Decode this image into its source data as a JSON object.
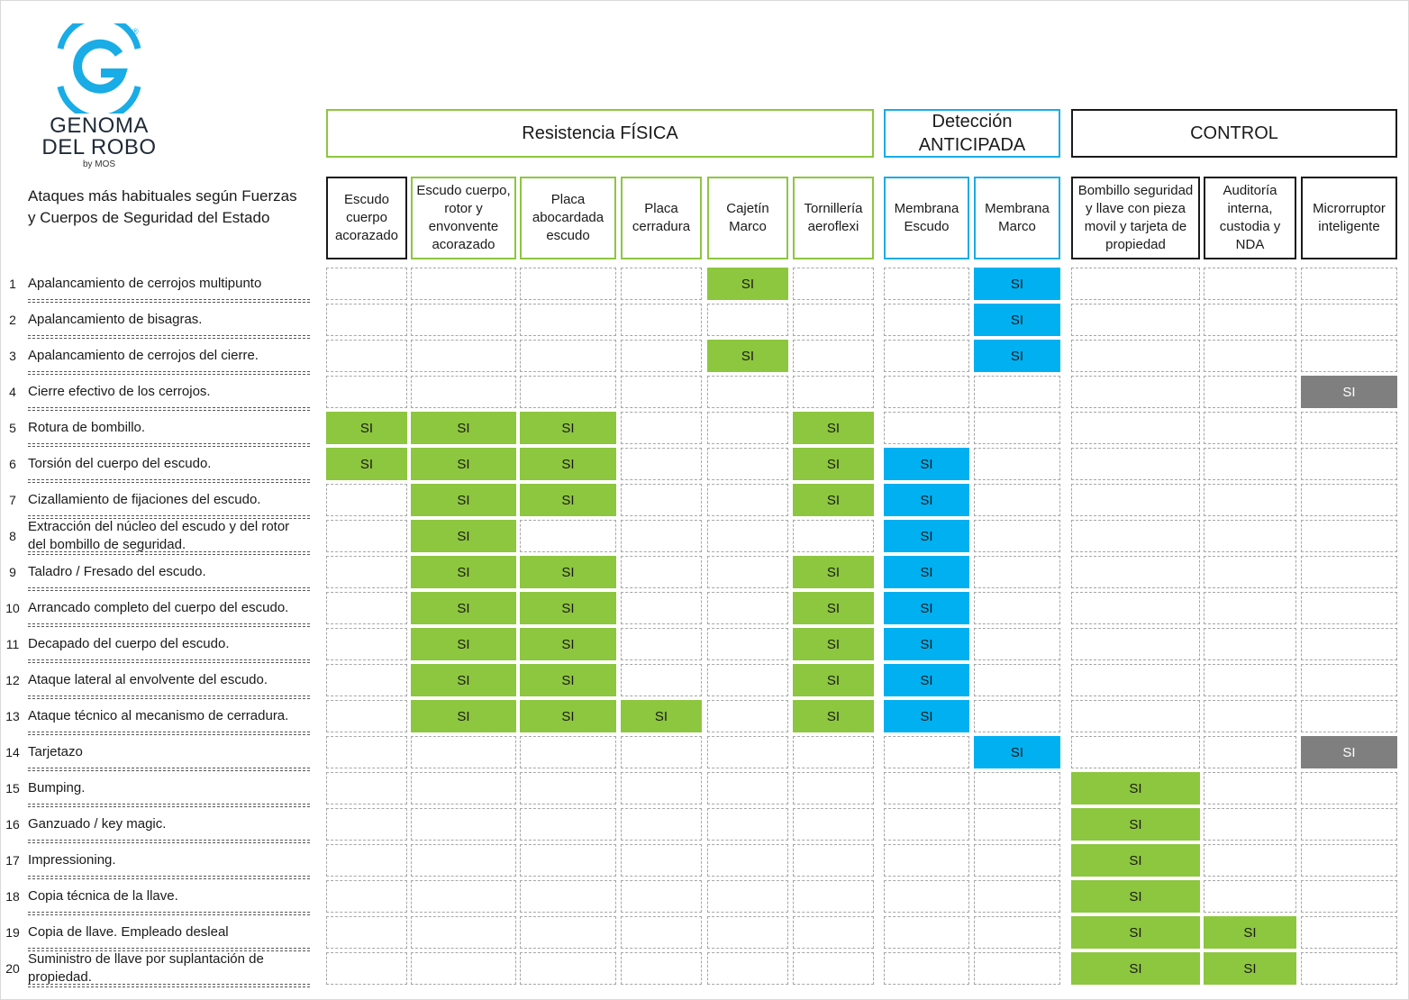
{
  "logo": {
    "line1": "GENOMA",
    "line2": "DEL ROBO",
    "byline": "by MOS",
    "registered": "®",
    "letter": "G",
    "color": "#1aace6"
  },
  "groups": [
    {
      "label": "Resistencia FÍSICA",
      "color": "#8dc63f"
    },
    {
      "label": "Detección ANTICIPADA",
      "color": "#1aace6"
    },
    {
      "label": "CONTROL",
      "color": "#1a1a1a"
    }
  ],
  "attacks_title": "Ataques más habituales según Fuerzas y Cuerpos de Seguridad del Estado",
  "columns": [
    {
      "label": "Escudo cuerpo acorazado",
      "border": "black"
    },
    {
      "label": "Escudo cuerpo, rotor y envonvente acorazado",
      "border": "green"
    },
    {
      "label": "Placa abocardada escudo",
      "border": "green"
    },
    {
      "label": "Placa cerradura",
      "border": "green"
    },
    {
      "label": "Cajetín Marco",
      "border": "green"
    },
    {
      "label": "Tornillería aeroflexi",
      "border": "green"
    },
    {
      "label": "Membrana Escudo",
      "border": "blue"
    },
    {
      "label": "Membrana Marco",
      "border": "blue"
    },
    {
      "label": "Bombillo seguridad y llave con pieza movil y tarjeta de propiedad",
      "border": "black"
    },
    {
      "label": "Auditoría interna, custodia y NDA",
      "border": "black"
    },
    {
      "label": "Microrruptor inteligente",
      "border": "black"
    }
  ],
  "colors": {
    "green": "#8dc63f",
    "blue": "#00b0f0",
    "gray": "#7f7f7f"
  },
  "rows": [
    {
      "num": "1",
      "label": "Apalancamiento de cerrojos multipunto",
      "cells": [
        "",
        "",
        "",
        "",
        "green",
        "",
        "",
        "blue",
        "",
        "",
        ""
      ]
    },
    {
      "num": "2",
      "label": "Apalancamiento de bisagras.",
      "cells": [
        "",
        "",
        "",
        "",
        "",
        "",
        "",
        "blue",
        "",
        "",
        ""
      ]
    },
    {
      "num": "3",
      "label": "Apalancamiento de cerrojos del cierre.",
      "cells": [
        "",
        "",
        "",
        "",
        "green",
        "",
        "",
        "blue",
        "",
        "",
        ""
      ]
    },
    {
      "num": "4",
      "label": "Cierre efectivo de los cerrojos.",
      "cells": [
        "",
        "",
        "",
        "",
        "",
        "",
        "",
        "",
        "",
        "",
        "gray"
      ]
    },
    {
      "num": "5",
      "label": "Rotura de bombillo.",
      "cells": [
        "green",
        "green",
        "green",
        "",
        "",
        "green",
        "",
        "",
        "",
        "",
        ""
      ]
    },
    {
      "num": "6",
      "label": "Torsión del cuerpo del escudo.",
      "cells": [
        "green",
        "green",
        "green",
        "",
        "",
        "green",
        "blue",
        "",
        "",
        "",
        ""
      ]
    },
    {
      "num": "7",
      "label": "Cizallamiento de fijaciones del escudo.",
      "cells": [
        "",
        "green",
        "green",
        "",
        "",
        "green",
        "blue",
        "",
        "",
        "",
        ""
      ]
    },
    {
      "num": "8",
      "label": "Extracción del núcleo del escudo y del rotor del bombillo de seguridad.",
      "cells": [
        "",
        "green",
        "",
        "",
        "",
        "",
        "blue",
        "",
        "",
        "",
        ""
      ]
    },
    {
      "num": "9",
      "label": "Taladro / Fresado del escudo.",
      "cells": [
        "",
        "green",
        "green",
        "",
        "",
        "green",
        "blue",
        "",
        "",
        "",
        ""
      ]
    },
    {
      "num": "10",
      "label": "Arrancado completo del cuerpo del escudo.",
      "cells": [
        "",
        "green",
        "green",
        "",
        "",
        "green",
        "blue",
        "",
        "",
        "",
        ""
      ]
    },
    {
      "num": "11",
      "label": "Decapado del cuerpo del escudo.",
      "cells": [
        "",
        "green",
        "green",
        "",
        "",
        "green",
        "blue",
        "",
        "",
        "",
        ""
      ]
    },
    {
      "num": "12",
      "label": "Ataque lateral al envolvente del escudo.",
      "cells": [
        "",
        "green",
        "green",
        "",
        "",
        "green",
        "blue",
        "",
        "",
        "",
        ""
      ]
    },
    {
      "num": "13",
      "label": "Ataque técnico al mecanismo de cerradura.",
      "cells": [
        "",
        "green",
        "green",
        "green",
        "",
        "green",
        "blue",
        "",
        "",
        "",
        ""
      ]
    },
    {
      "num": "14",
      "label": "Tarjetazo",
      "cells": [
        "",
        "",
        "",
        "",
        "",
        "",
        "",
        "blue",
        "",
        "",
        "gray"
      ]
    },
    {
      "num": "15",
      "label": "Bumping.",
      "cells": [
        "",
        "",
        "",
        "",
        "",
        "",
        "",
        "",
        "green",
        "",
        ""
      ]
    },
    {
      "num": "16",
      "label": "Ganzuado / key magic.",
      "cells": [
        "",
        "",
        "",
        "",
        "",
        "",
        "",
        "",
        "green",
        "",
        ""
      ]
    },
    {
      "num": "17",
      "label": "Impressioning.",
      "cells": [
        "",
        "",
        "",
        "",
        "",
        "",
        "",
        "",
        "green",
        "",
        ""
      ]
    },
    {
      "num": "18",
      "label": "Copia técnica de la llave.",
      "cells": [
        "",
        "",
        "",
        "",
        "",
        "",
        "",
        "",
        "green",
        "",
        ""
      ]
    },
    {
      "num": "19",
      "label": "Copia de llave. Empleado desleal",
      "cells": [
        "",
        "",
        "",
        "",
        "",
        "",
        "",
        "",
        "green",
        "green",
        ""
      ]
    },
    {
      "num": "20",
      "label": "Suministro de llave por suplantación de propiedad.",
      "cells": [
        "",
        "",
        "",
        "",
        "",
        "",
        "",
        "",
        "green",
        "green",
        ""
      ]
    }
  ],
  "cell_value": "SI"
}
